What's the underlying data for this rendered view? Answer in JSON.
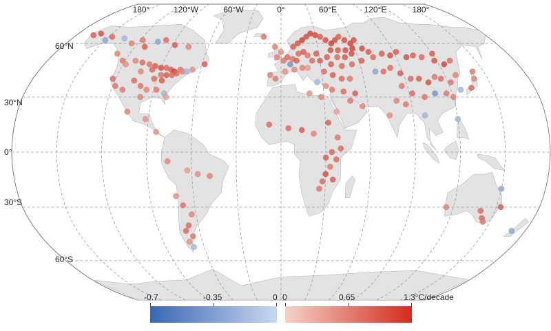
{
  "map": {
    "lon_labels": [
      "180°",
      "120°W",
      "60°W",
      "0°",
      "60°E",
      "120°E",
      "180°"
    ],
    "lat_labels": [
      "60°N",
      "30°N",
      "0°",
      "30°S",
      "60°S"
    ],
    "land_color": "#e3e3e3",
    "grid_color": "#9a9a9a"
  },
  "legend": {
    "negative": {
      "min_label": "-0.7",
      "mid_label": "-0.35",
      "max_label": "0",
      "color_from": "#3a66b3",
      "color_to": "#c9d8f0"
    },
    "positive": {
      "min_label": "0",
      "mid_label": "0.65",
      "max_label": "1.3°C/decade",
      "color_from": "#f4d2c6",
      "color_to": "#d42a1e"
    }
  },
  "stations": [
    [
      -165,
      65,
      0.9
    ],
    [
      -160,
      66,
      1.0
    ],
    [
      -150,
      62,
      -0.3
    ],
    [
      -147,
      64,
      0.8
    ],
    [
      -135,
      63,
      -0.2
    ],
    [
      -125,
      60,
      0.6
    ],
    [
      -118,
      62,
      0.7
    ],
    [
      -112,
      58,
      0.9
    ],
    [
      -104,
      61,
      -0.3
    ],
    [
      -98,
      62,
      0.8
    ],
    [
      -88,
      59,
      0.9
    ],
    [
      -76,
      58,
      0.6
    ],
    [
      -130,
      54,
      0.6
    ],
    [
      -122,
      50,
      0.7
    ],
    [
      -118,
      48,
      0.5
    ],
    [
      -112,
      50,
      0.6
    ],
    [
      -106,
      49,
      0.8
    ],
    [
      -100,
      48,
      0.7
    ],
    [
      -95,
      47,
      0.9
    ],
    [
      -90,
      46,
      1.0
    ],
    [
      -86,
      46,
      0.8
    ],
    [
      -82,
      45,
      0.9
    ],
    [
      -79,
      44,
      1.1
    ],
    [
      -77,
      43,
      0.8
    ],
    [
      -75,
      45,
      0.7
    ],
    [
      -73,
      44,
      0.6
    ],
    [
      -70,
      44,
      -0.2
    ],
    [
      -66,
      45,
      0.5
    ],
    [
      -58,
      48,
      0.9
    ],
    [
      -104,
      44,
      0.6
    ],
    [
      -96,
      45,
      0.8
    ],
    [
      -88,
      42,
      0.7
    ],
    [
      -84,
      42,
      0.9
    ],
    [
      -80,
      42,
      0.8
    ],
    [
      -92,
      40,
      0.8
    ],
    [
      -86,
      39,
      0.9
    ],
    [
      -122,
      40,
      0.8
    ],
    [
      -118,
      36,
      0.7
    ],
    [
      -112,
      34,
      0.7
    ],
    [
      -106,
      39,
      0.8
    ],
    [
      -100,
      36,
      0.7
    ],
    [
      -95,
      34,
      0.6
    ],
    [
      -88,
      34,
      0.7
    ],
    [
      -82,
      32,
      -0.2
    ],
    [
      -80,
      30,
      0.4
    ],
    [
      -98,
      30,
      0.6
    ],
    [
      -105,
      22,
      0.6
    ],
    [
      -92,
      18,
      0.5
    ],
    [
      -84,
      11,
      0.5
    ],
    [
      -76,
      -5,
      0.6
    ],
    [
      -63,
      -10,
      0.4
    ],
    [
      -56,
      -12,
      0.5
    ],
    [
      -48,
      -13,
      0.6
    ],
    [
      -72,
      -24,
      0.5
    ],
    [
      -68,
      -29,
      0.7
    ],
    [
      -63,
      -34,
      0.6
    ],
    [
      -67,
      -40,
      0.8
    ],
    [
      -70,
      -43,
      0.8
    ],
    [
      -66,
      -46,
      0.7
    ],
    [
      -70,
      -49,
      0.5
    ],
    [
      -68,
      -52,
      -0.2
    ],
    [
      -15,
      64,
      0.7
    ],
    [
      -5,
      58,
      0.6
    ],
    [
      0,
      55,
      0.5
    ],
    [
      -3,
      52,
      0.6
    ],
    [
      2,
      50,
      0.7
    ],
    [
      5,
      52,
      0.8
    ],
    [
      7,
      48,
      -0.4
    ],
    [
      9,
      51,
      0.7
    ],
    [
      12,
      50,
      0.9
    ],
    [
      14,
      54,
      0.8
    ],
    [
      18,
      55,
      0.9
    ],
    [
      21,
      53,
      0.7
    ],
    [
      24,
      50,
      0.8
    ],
    [
      28,
      54,
      0.9
    ],
    [
      16,
      46,
      0.6
    ],
    [
      20,
      46,
      0.4
    ],
    [
      10,
      45,
      0.6
    ],
    [
      3,
      44,
      0.5
    ],
    [
      -4,
      40,
      0.7
    ],
    [
      -8,
      42,
      0.6
    ],
    [
      10,
      58,
      0.9
    ],
    [
      14,
      60,
      1.0
    ],
    [
      18,
      62,
      1.1
    ],
    [
      22,
      64,
      1.0
    ],
    [
      26,
      66,
      1.1
    ],
    [
      30,
      65,
      1.0
    ],
    [
      34,
      64,
      0.9
    ],
    [
      38,
      62,
      1.0
    ],
    [
      42,
      60,
      1.1
    ],
    [
      46,
      62,
      1.0
    ],
    [
      50,
      64,
      0.9
    ],
    [
      54,
      62,
      1.0
    ],
    [
      58,
      60,
      1.1
    ],
    [
      62,
      62,
      1.0
    ],
    [
      40,
      56,
      1.0
    ],
    [
      46,
      56,
      0.9
    ],
    [
      52,
      56,
      1.0
    ],
    [
      58,
      57,
      1.1
    ],
    [
      36,
      52,
      0.9
    ],
    [
      44,
      52,
      0.8
    ],
    [
      50,
      52,
      0.9
    ],
    [
      56,
      54,
      1.0
    ],
    [
      30,
      50,
      0.9
    ],
    [
      38,
      48,
      0.9
    ],
    [
      46,
      47,
      0.8
    ],
    [
      54,
      48,
      0.8
    ],
    [
      62,
      50,
      0.9
    ],
    [
      66,
      57,
      1.0
    ],
    [
      70,
      55,
      0.9
    ],
    [
      32,
      44,
      0.8
    ],
    [
      38,
      42,
      0.9
    ],
    [
      44,
      40,
      0.8
    ],
    [
      50,
      40,
      0.7
    ],
    [
      26,
      38,
      -0.2
    ],
    [
      32,
      36,
      0.5
    ],
    [
      36,
      34,
      0.7
    ],
    [
      44,
      33,
      0.8
    ],
    [
      52,
      32,
      0.9
    ],
    [
      48,
      28,
      0.7
    ],
    [
      28,
      30,
      0.6
    ],
    [
      38,
      22,
      0.4
    ],
    [
      56,
      25,
      0.6
    ],
    [
      20,
      32,
      0.5
    ],
    [
      72,
      52,
      0.8
    ],
    [
      80,
      54,
      0.9
    ],
    [
      86,
      53,
      1.0
    ],
    [
      92,
      55,
      0.9
    ],
    [
      98,
      52,
      1.0
    ],
    [
      104,
      53,
      0.9
    ],
    [
      110,
      52,
      0.8
    ],
    [
      118,
      50,
      1.0
    ],
    [
      124,
      48,
      1.1
    ],
    [
      120,
      54,
      0.9
    ],
    [
      130,
      50,
      0.8
    ],
    [
      70,
      44,
      -0.3
    ],
    [
      76,
      44,
      0.8
    ],
    [
      82,
      46,
      0.8
    ],
    [
      88,
      43,
      0.9
    ],
    [
      94,
      40,
      0.8
    ],
    [
      100,
      40,
      0.9
    ],
    [
      106,
      38,
      1.0
    ],
    [
      112,
      41,
      0.7
    ],
    [
      116,
      40,
      0.8
    ],
    [
      122,
      38,
      0.7
    ],
    [
      128,
      42,
      0.6
    ],
    [
      86,
      36,
      0.7
    ],
    [
      92,
      32,
      0.8
    ],
    [
      100,
      30,
      0.7
    ],
    [
      108,
      32,
      -0.4
    ],
    [
      116,
      32,
      0.7
    ],
    [
      120,
      30,
      0.6
    ],
    [
      80,
      28,
      0.6
    ],
    [
      86,
      26,
      0.7
    ],
    [
      74,
      20,
      0.5
    ],
    [
      98,
      20,
      -0.2
    ],
    [
      140,
      40,
      0.6
    ],
    [
      142,
      44,
      0.7
    ],
    [
      135,
      35,
      0.8
    ],
    [
      -8,
      15,
      0.8
    ],
    [
      5,
      13,
      0.8
    ],
    [
      14,
      12,
      0.9
    ],
    [
      22,
      10,
      0.6
    ],
    [
      32,
      16,
      0.9
    ],
    [
      38,
      8,
      0.7
    ],
    [
      40,
      2,
      0.8
    ],
    [
      34,
      0,
      0.8
    ],
    [
      30,
      -3,
      0.9
    ],
    [
      37,
      -4,
      0.8
    ],
    [
      33,
      -8,
      0.7
    ],
    [
      30,
      -12,
      1.0
    ],
    [
      35,
      -15,
      0.9
    ],
    [
      28,
      -16,
      0.8
    ],
    [
      26,
      -20,
      0.7
    ],
    [
      120,
      18,
      -0.2
    ],
    [
      150,
      -20,
      -0.3
    ],
    [
      115,
      -30,
      0.6
    ],
    [
      140,
      -32,
      0.8
    ],
    [
      143,
      -36,
      0.8
    ],
    [
      145,
      -38,
      0.7
    ],
    [
      153,
      -30,
      0.9
    ],
    [
      170,
      -43,
      -0.3
    ],
    [
      127,
      34,
      -0.2
    ]
  ]
}
